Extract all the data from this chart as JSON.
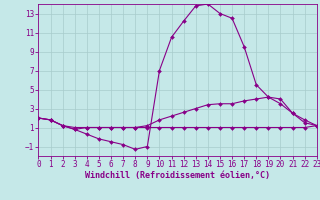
{
  "title": "",
  "xlabel": "Windchill (Refroidissement éolien,°C)",
  "ylabel": "",
  "bg_color": "#c5e8e8",
  "line_color": "#880088",
  "grid_color": "#a8cccc",
  "x_values": [
    0,
    1,
    2,
    3,
    4,
    5,
    6,
    7,
    8,
    9,
    10,
    11,
    12,
    13,
    14,
    15,
    16,
    17,
    18,
    19,
    20,
    21,
    22,
    23
  ],
  "curve1": [
    2.0,
    1.8,
    1.2,
    0.8,
    0.3,
    -0.2,
    -0.5,
    -0.8,
    -1.3,
    -1.0,
    7.0,
    10.5,
    12.2,
    13.8,
    14.0,
    13.0,
    12.5,
    9.5,
    5.5,
    4.2,
    4.0,
    2.5,
    1.5,
    1.2
  ],
  "curve2": [
    2.0,
    1.8,
    1.2,
    1.0,
    1.0,
    1.0,
    1.0,
    1.0,
    1.0,
    1.2,
    1.8,
    2.2,
    2.6,
    3.0,
    3.4,
    3.5,
    3.5,
    3.8,
    4.0,
    4.2,
    3.5,
    2.5,
    1.8,
    1.2
  ],
  "curve3": [
    2.0,
    1.8,
    1.2,
    0.8,
    1.0,
    1.0,
    1.0,
    1.0,
    1.0,
    1.0,
    1.0,
    1.0,
    1.0,
    1.0,
    1.0,
    1.0,
    1.0,
    1.0,
    1.0,
    1.0,
    1.0,
    1.0,
    1.0,
    1.2
  ],
  "xlim": [
    0,
    23
  ],
  "ylim": [
    -2,
    14
  ],
  "yticks": [
    -1,
    1,
    3,
    5,
    7,
    9,
    11,
    13
  ],
  "xticks": [
    0,
    1,
    2,
    3,
    4,
    5,
    6,
    7,
    8,
    9,
    10,
    11,
    12,
    13,
    14,
    15,
    16,
    17,
    18,
    19,
    20,
    21,
    22,
    23
  ],
  "marker": "D",
  "markersize": 2.0,
  "linewidth": 0.8,
  "xlabel_fontsize": 6,
  "tick_fontsize": 5.5
}
